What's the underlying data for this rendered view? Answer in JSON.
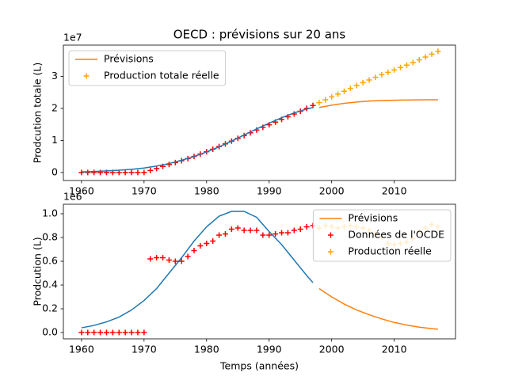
{
  "chart_data": [
    {
      "type": "line",
      "title": "OECD : prévisions sur 20 ans",
      "ylabel": "Prodcution totale (L)",
      "offset_text": "1e7",
      "xlim": [
        1957.1,
        2019.8
      ],
      "xticks": [
        1960,
        1970,
        1980,
        1990,
        2000,
        2010
      ],
      "ylim": [
        -0.25,
        3.975
      ],
      "yticks": [
        0,
        1,
        2,
        3
      ],
      "legend": "upper left",
      "series": [
        {
          "type": "scatter",
          "color": "red",
          "x": [
            1960,
            1961,
            1962,
            1963,
            1964,
            1965,
            1966,
            1967,
            1968,
            1969,
            1970,
            1971,
            1972,
            1973,
            1974,
            1975,
            1976,
            1977,
            1978,
            1979,
            1980,
            1981,
            1982,
            1983,
            1984,
            1985,
            1986,
            1987,
            1988,
            1989,
            1990,
            1991,
            1992,
            1993,
            1994,
            1995,
            1996,
            1997
          ],
          "values": [
            0,
            0,
            0,
            0,
            0,
            0,
            0,
            0,
            0,
            0,
            0,
            0.062,
            0.125,
            0.188,
            0.249,
            0.309,
            0.369,
            0.433,
            0.502,
            0.575,
            0.65,
            0.727,
            0.809,
            0.892,
            0.979,
            1.067,
            1.153,
            1.239,
            1.325,
            1.407,
            1.489,
            1.572,
            1.656,
            1.74,
            1.826,
            1.913,
            2.002,
            2.092
          ]
        },
        {
          "type": "line",
          "color": "#1f77b4",
          "x": [
            1960,
            1962,
            1964,
            1966,
            1968,
            1970,
            1972,
            1974,
            1976,
            1978,
            1980,
            1982,
            1984,
            1986,
            1988,
            1990,
            1992,
            1994,
            1996,
            1997
          ],
          "values": [
            0.02,
            0.03,
            0.05,
            0.07,
            0.1,
            0.14,
            0.2,
            0.28,
            0.38,
            0.5,
            0.64,
            0.8,
            0.98,
            1.17,
            1.36,
            1.54,
            1.71,
            1.86,
            1.98,
            2.03
          ]
        },
        {
          "name": "Prévisions",
          "type": "line",
          "color": "#ff7f0e",
          "x": [
            1998,
            2000,
            2002,
            2004,
            2006,
            2008,
            2010,
            2012,
            2014,
            2016,
            2017
          ],
          "values": [
            2.03,
            2.1,
            2.16,
            2.2,
            2.23,
            2.245,
            2.255,
            2.262,
            2.267,
            2.27,
            2.27
          ]
        },
        {
          "name": "Production totale réelle",
          "type": "scatter",
          "color": "orange",
          "x": [
            1998,
            1999,
            2000,
            2001,
            2002,
            2003,
            2004,
            2005,
            2006,
            2007,
            2008,
            2009,
            2010,
            2011,
            2012,
            2013,
            2014,
            2015,
            2016,
            2017
          ],
          "values": [
            2.18,
            2.27,
            2.359,
            2.447,
            2.536,
            2.626,
            2.715,
            2.803,
            2.889,
            2.972,
            3.052,
            3.127,
            3.201,
            3.276,
            3.352,
            3.431,
            3.516,
            3.604,
            3.695,
            3.784
          ]
        }
      ]
    },
    {
      "type": "line",
      "ylabel": "Prodcution (L)",
      "xlabel": "Temps (années)",
      "offset_text": "1e6",
      "xlim": [
        1957.1,
        2019.8
      ],
      "xticks": [
        1960,
        1970,
        1980,
        1990,
        2000,
        2010
      ],
      "ylim": [
        -0.053,
        1.08
      ],
      "yticks": [
        {
          "value": 0,
          "label": "0.0"
        },
        0.2,
        0.4,
        0.6,
        0.8,
        {
          "value": 1,
          "label": "1.0"
        }
      ],
      "legend": "upper right",
      "series": [
        {
          "type": "line",
          "color": "#1f77b4",
          "x": [
            1960,
            1962,
            1964,
            1966,
            1968,
            1970,
            1972,
            1974,
            1976,
            1978,
            1980,
            1982,
            1984,
            1986,
            1988,
            1990,
            1992,
            1994,
            1996,
            1997
          ],
          "values": [
            0.04,
            0.06,
            0.09,
            0.13,
            0.19,
            0.27,
            0.37,
            0.5,
            0.63,
            0.77,
            0.89,
            0.98,
            1.02,
            1.02,
            0.97,
            0.85,
            0.74,
            0.61,
            0.48,
            0.42
          ]
        },
        {
          "name": "Prévisions",
          "type": "line",
          "color": "#ff7f0e",
          "x": [
            1998,
            2000,
            2002,
            2004,
            2006,
            2008,
            2010,
            2012,
            2014,
            2016,
            2017
          ],
          "values": [
            0.37,
            0.3,
            0.24,
            0.19,
            0.15,
            0.115,
            0.085,
            0.063,
            0.045,
            0.033,
            0.028
          ]
        },
        {
          "name": "Données de l'OCDE",
          "type": "scatter",
          "color": "red",
          "x": [
            1960,
            1961,
            1962,
            1963,
            1964,
            1965,
            1966,
            1967,
            1968,
            1969,
            1970,
            1971,
            1972,
            1973,
            1974,
            1975,
            1976,
            1977,
            1978,
            1979,
            1980,
            1981,
            1982,
            1983,
            1984,
            1985,
            1986,
            1987,
            1988,
            1989,
            1990,
            1991,
            1992,
            1993,
            1994,
            1995,
            1996,
            1997
          ],
          "values": [
            0,
            0,
            0,
            0,
            0,
            0,
            0,
            0,
            0,
            0,
            0,
            0.62,
            0.63,
            0.63,
            0.61,
            0.6,
            0.6,
            0.64,
            0.69,
            0.73,
            0.75,
            0.77,
            0.82,
            0.83,
            0.87,
            0.88,
            0.86,
            0.86,
            0.86,
            0.82,
            0.82,
            0.83,
            0.84,
            0.84,
            0.86,
            0.87,
            0.89,
            0.9
          ]
        },
        {
          "name": "Production réelle",
          "type": "scatter",
          "color": "orange",
          "x": [
            1998,
            1999,
            2000,
            2001,
            2002,
            2003,
            2004,
            2005,
            2006,
            2007,
            2008,
            2009,
            2010,
            2011,
            2012,
            2013,
            2014,
            2015,
            2016,
            2017
          ],
          "values": [
            0.88,
            0.9,
            0.89,
            0.88,
            0.89,
            0.9,
            0.89,
            0.88,
            0.86,
            0.83,
            0.8,
            0.75,
            0.74,
            0.75,
            0.76,
            0.79,
            0.85,
            0.88,
            0.91,
            0.89
          ]
        }
      ]
    }
  ]
}
